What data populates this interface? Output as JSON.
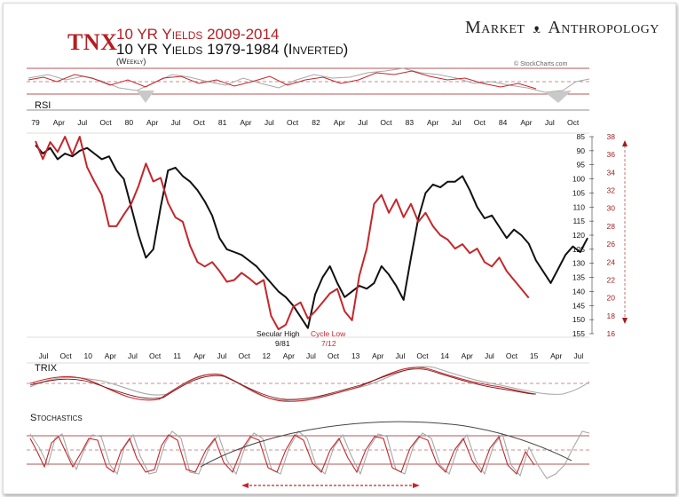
{
  "header": {
    "ticker": "TNX",
    "title_red": "10 YR Yields 2009-2014",
    "title_black": "10 YR Yields 1979-1984 (Inverted)",
    "subtitle": "(Weekly)",
    "brand": "Market",
    "brand_right": "Anthropology",
    "credit": "© StockCharts.com"
  },
  "colors": {
    "red": "#c4262b",
    "black": "#111111",
    "grey": "#a8a8a8",
    "guide": "#9b1b1f"
  },
  "panels": {
    "rsi": "RSI",
    "trix": "TRIX",
    "stochastics": "Stochastics"
  },
  "chart_data": {
    "type": "line",
    "top_axis_1979_1984": [
      "79",
      "Apr",
      "Jul",
      "Oct",
      "80",
      "Apr",
      "Jul",
      "Oct",
      "81",
      "Apr",
      "Jul",
      "Oct",
      "82",
      "Apr",
      "Jul",
      "Oct",
      "83",
      "Apr",
      "Jul",
      "Oct",
      "84",
      "Apr",
      "Jul",
      "Oct"
    ],
    "bottom_axis_2009_2014": [
      "Jul",
      "Oct",
      "10",
      "Apr",
      "Jul",
      "Oct",
      "11",
      "Apr",
      "Jul",
      "Oct",
      "12",
      "Apr",
      "Jul",
      "Oct",
      "13",
      "Apr",
      "Jul",
      "Oct",
      "14",
      "Apr",
      "Jul",
      "Oct",
      "15",
      "Apr",
      "Jul"
    ],
    "left_axis_inverted": {
      "ticks": [
        85,
        90,
        95,
        100,
        105,
        110,
        115,
        120,
        125,
        130,
        135,
        140,
        145,
        150,
        155
      ],
      "ylim": [
        85,
        155
      ]
    },
    "right_axis": {
      "ticks": [
        38,
        36,
        34,
        32,
        30,
        28,
        26,
        24,
        22,
        20,
        18,
        16
      ],
      "ylim": [
        16,
        38
      ]
    },
    "annotations": [
      {
        "text": "Secular High",
        "date": "9/81"
      },
      {
        "text": "Cycle Low",
        "date": "7/12"
      }
    ],
    "series": [
      {
        "name": "10 YR Yields 1979-1984 (Inverted)",
        "axis": "left",
        "x": [
          0,
          4,
          8,
          12,
          16,
          20,
          24,
          28,
          32,
          36,
          40,
          44,
          48,
          52,
          56,
          60,
          64,
          68,
          72,
          76,
          80,
          84,
          88,
          92,
          96,
          100,
          104,
          108,
          112,
          116,
          120,
          124,
          128,
          132,
          136,
          140,
          144,
          148,
          152,
          156,
          160,
          164,
          168,
          172,
          176,
          180,
          184,
          188,
          192,
          196,
          200,
          204,
          208,
          212,
          216,
          220,
          224,
          228,
          232,
          236,
          240,
          244,
          248,
          252,
          256,
          260,
          264,
          268,
          272,
          276,
          280,
          284,
          288,
          292,
          296,
          300
        ],
        "values": [
          88,
          91,
          89,
          93,
          91,
          92,
          90,
          89,
          91,
          93,
          92,
          97,
          100,
          110,
          120,
          128,
          125,
          110,
          97,
          96,
          99,
          101,
          104,
          108,
          113,
          121,
          125,
          126,
          127,
          129,
          131,
          134,
          137,
          140,
          142,
          145,
          149,
          153,
          141,
          135,
          131,
          137,
          142,
          140,
          138,
          139,
          137,
          131,
          134,
          138,
          143,
          128,
          114,
          105,
          102,
          103,
          101,
          101,
          99,
          104,
          110,
          114,
          113,
          117,
          121,
          118,
          120,
          123,
          129,
          133,
          137,
          132,
          127,
          124,
          126,
          121
        ]
      },
      {
        "name": "10 YR Yields 2009-2014",
        "axis": "right",
        "x": [
          0,
          4,
          8,
          12,
          16,
          20,
          24,
          28,
          32,
          36,
          40,
          44,
          48,
          52,
          56,
          60,
          64,
          68,
          72,
          76,
          80,
          84,
          88,
          92,
          96,
          100,
          104,
          108,
          112,
          116,
          120,
          124,
          128,
          132,
          136,
          140,
          144,
          148,
          152,
          156,
          160,
          164,
          168,
          172,
          176,
          180,
          184,
          188,
          192,
          196,
          200,
          204,
          208,
          212,
          216,
          220,
          224,
          228,
          232,
          236,
          240,
          244,
          248,
          252,
          256,
          260,
          264,
          268
        ],
        "values": [
          37.5,
          35.5,
          37.4,
          36.3,
          38.0,
          36.0,
          38.0,
          34.6,
          33.0,
          31.5,
          28.0,
          28.0,
          29.3,
          30.5,
          32.5,
          35.0,
          33.0,
          33.4,
          30.6,
          29.0,
          28.5,
          25.8,
          24.0,
          23.5,
          24.0,
          23.0,
          21.8,
          22.0,
          22.8,
          22.2,
          21.5,
          22.0,
          18.0,
          16.5,
          17.0,
          19.0,
          19.5,
          17.7,
          18.5,
          19.5,
          20.5,
          21.0,
          18.5,
          17.5,
          22.5,
          25.5,
          30.5,
          31.5,
          29.5,
          31.0,
          29.0,
          30.5,
          28.5,
          29.5,
          28.0,
          27.0,
          26.5,
          25.5,
          26.0,
          25.0,
          25.5,
          24.0,
          23.5,
          24.5,
          23.0,
          22.0,
          21.0,
          20.0
        ]
      }
    ],
    "indicators": [
      "RSI",
      "TRIX",
      "Stochastics"
    ],
    "grid": false
  }
}
